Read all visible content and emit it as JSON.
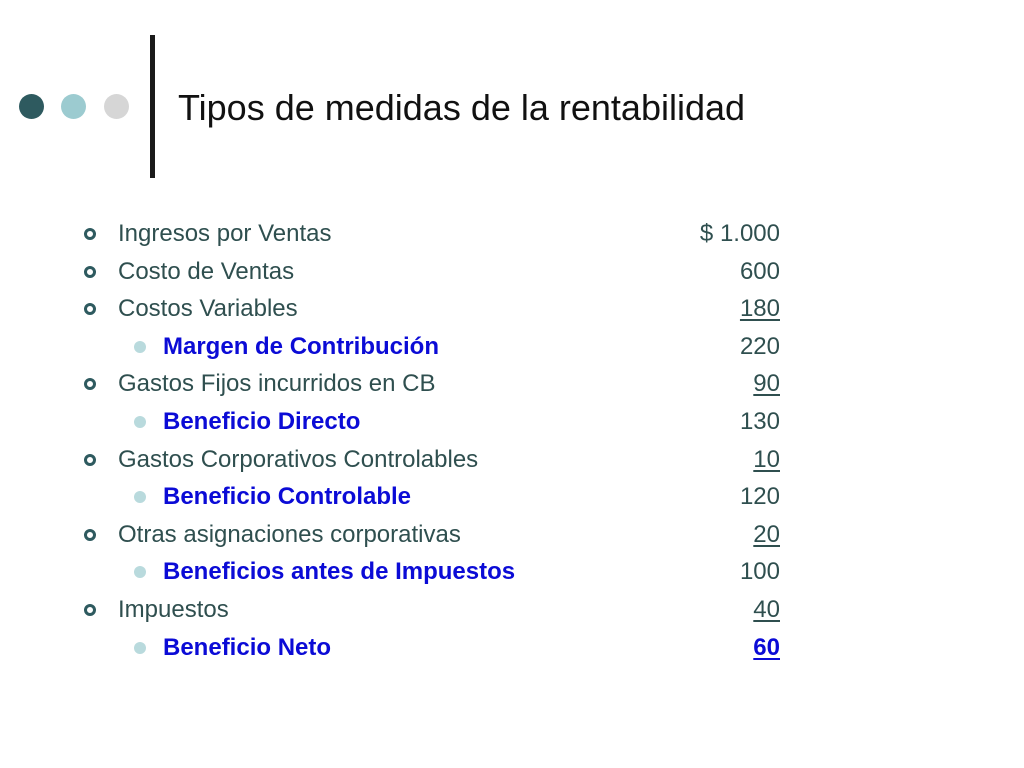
{
  "slide": {
    "title": "Tipos de medidas de la rentabilidad",
    "decorations": {
      "dot_colors": [
        "#2e5a5f",
        "#9ccbd0",
        "#d6d6d6"
      ]
    },
    "rows": [
      {
        "level": 1,
        "label": "Ingresos por Ventas",
        "value": "$ 1.000",
        "underlined": false
      },
      {
        "level": 1,
        "label": "Costo de Ventas",
        "value": "600",
        "underlined": false
      },
      {
        "level": 1,
        "label": "Costos Variables",
        "value": "180",
        "underlined": true
      },
      {
        "level": 2,
        "label": "Margen de Contribución",
        "value": "220",
        "underlined": false
      },
      {
        "level": 1,
        "label": "Gastos Fijos incurridos en CB",
        "value": "90",
        "underlined": true
      },
      {
        "level": 2,
        "label": "Beneficio Directo",
        "value": "130",
        "underlined": false
      },
      {
        "level": 1,
        "label": "Gastos Corporativos Controlables",
        "value": "10",
        "underlined": true
      },
      {
        "level": 2,
        "label": "Beneficio Controlable",
        "value": "120",
        "underlined": false
      },
      {
        "level": 1,
        "label": "Otras asignaciones corporativas",
        "value": "20",
        "underlined": true
      },
      {
        "level": 2,
        "label": "Beneficios antes de Impuestos",
        "value": "100",
        "underlined": false
      },
      {
        "level": 1,
        "label": "Impuestos",
        "value": "40",
        "underlined": true
      },
      {
        "level": 2,
        "label": "Beneficio Neto",
        "value": "60",
        "underlined": true,
        "highlight": true
      }
    ],
    "colors": {
      "level1_text": "#2f4f4f",
      "level2_text": "#0b0bd6",
      "title_text": "#111111"
    }
  }
}
